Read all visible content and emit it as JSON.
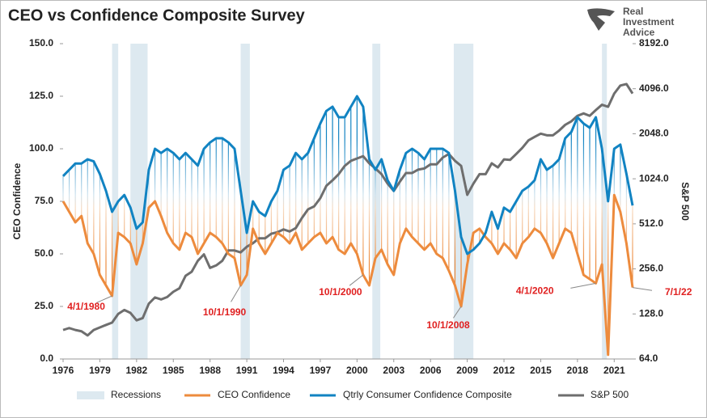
{
  "chart_data": {
    "type": "line",
    "title": "CEO vs Confidence Composite Survey",
    "logo": [
      "Real",
      "Investment",
      "Advice"
    ],
    "ylabel": "CEO Confidence",
    "y2label": "S&P 500",
    "x": [
      1976,
      1976.5,
      1977,
      1977.5,
      1978,
      1978.5,
      1979,
      1979.5,
      1980,
      1980.5,
      1981,
      1981.5,
      1982,
      1982.5,
      1983,
      1983.5,
      1984,
      1984.5,
      1985,
      1985.5,
      1986,
      1986.5,
      1987,
      1987.5,
      1988,
      1988.5,
      1989,
      1989.5,
      1990,
      1990.5,
      1991,
      1991.5,
      1992,
      1992.5,
      1993,
      1993.5,
      1994,
      1994.5,
      1995,
      1995.5,
      1996,
      1996.5,
      1997,
      1997.5,
      1998,
      1998.5,
      1999,
      1999.5,
      2000,
      2000.5,
      2001,
      2001.5,
      2002,
      2002.5,
      2003,
      2003.5,
      2004,
      2004.5,
      2005,
      2005.5,
      2006,
      2006.5,
      2007,
      2007.5,
      2008,
      2008.5,
      2009,
      2009.5,
      2010,
      2010.5,
      2011,
      2011.5,
      2012,
      2012.5,
      2013,
      2013.5,
      2014,
      2014.5,
      2015,
      2015.5,
      2016,
      2016.5,
      2017,
      2017.5,
      2018,
      2018.5,
      2019,
      2019.5,
      2020,
      2020.5,
      2021,
      2021.5,
      2022,
      2022.5
    ],
    "series": [
      {
        "name": "CEO Confidence",
        "color": "#ed8b3d",
        "values": [
          75,
          70,
          65,
          68,
          55,
          50,
          40,
          35,
          30,
          60,
          58,
          55,
          45,
          55,
          72,
          75,
          68,
          60,
          55,
          52,
          60,
          58,
          50,
          55,
          60,
          58,
          55,
          50,
          48,
          35,
          40,
          62,
          55,
          50,
          55,
          60,
          58,
          55,
          60,
          52,
          55,
          58,
          60,
          55,
          58,
          52,
          50,
          55,
          50,
          40,
          35,
          48,
          52,
          45,
          40,
          55,
          62,
          58,
          55,
          52,
          55,
          50,
          48,
          42,
          35,
          25,
          45,
          60,
          62,
          58,
          55,
          50,
          55,
          52,
          48,
          55,
          58,
          62,
          60,
          55,
          48,
          55,
          62,
          60,
          50,
          40,
          38,
          36,
          45,
          2,
          78,
          70,
          55,
          34
        ]
      },
      {
        "name": "Qtrly Consumer Confidence Composite",
        "color": "#1183c2",
        "values": [
          87,
          90,
          93,
          93,
          95,
          94,
          88,
          80,
          70,
          75,
          78,
          72,
          62,
          65,
          90,
          100,
          98,
          100,
          98,
          95,
          98,
          95,
          92,
          100,
          103,
          105,
          105,
          103,
          100,
          80,
          60,
          75,
          70,
          68,
          75,
          80,
          90,
          92,
          98,
          95,
          98,
          105,
          112,
          118,
          120,
          115,
          115,
          120,
          125,
          120,
          95,
          90,
          95,
          85,
          80,
          90,
          98,
          100,
          98,
          95,
          100,
          100,
          100,
          98,
          80,
          58,
          50,
          52,
          55,
          60,
          70,
          62,
          72,
          70,
          75,
          80,
          82,
          85,
          95,
          90,
          92,
          95,
          105,
          108,
          115,
          112,
          110,
          115,
          100,
          75,
          100,
          102,
          88,
          73
        ]
      },
      {
        "name": "S&P 500",
        "color": "#6e6e6e",
        "axis": "y2",
        "values": [
          100,
          103,
          100,
          98,
          92,
          100,
          104,
          108,
          112,
          128,
          136,
          130,
          116,
          120,
          150,
          165,
          160,
          166,
          180,
          190,
          230,
          245,
          290,
          320,
          260,
          270,
          290,
          340,
          340,
          330,
          360,
          380,
          410,
          410,
          440,
          450,
          470,
          455,
          480,
          560,
          640,
          670,
          760,
          920,
          1000,
          1100,
          1250,
          1350,
          1400,
          1450,
          1300,
          1200,
          1100,
          950,
          850,
          980,
          1120,
          1120,
          1180,
          1200,
          1280,
          1280,
          1420,
          1500,
          1350,
          1250,
          800,
          950,
          1100,
          1100,
          1300,
          1220,
          1380,
          1370,
          1500,
          1650,
          1850,
          1950,
          2050,
          2000,
          2000,
          2150,
          2350,
          2480,
          2700,
          2800,
          2700,
          2950,
          3200,
          3100,
          3800,
          4300,
          4400,
          3800
        ]
      }
    ],
    "recessions": {
      "name": "Recessions",
      "color": "#dde9f0",
      "periods": [
        [
          1980,
          1980.5
        ],
        [
          1981.5,
          1982.9
        ],
        [
          1990.5,
          1991.25
        ],
        [
          2001.25,
          2001.9
        ],
        [
          2007.9,
          2009.5
        ],
        [
          2020,
          2020.4
        ]
      ]
    },
    "annotations": [
      {
        "text": "4/1/1980",
        "x": 1980
      },
      {
        "text": "10/1/1990",
        "x": 1990.5
      },
      {
        "text": "10/1/2000",
        "x": 2000.5
      },
      {
        "text": "10/1/2008",
        "x": 2008.5
      },
      {
        "text": "4/1/2020",
        "x": 2019.5
      },
      {
        "text": "7/1/22",
        "x": 2022.5
      }
    ],
    "annotation_color": "#e02020",
    "xlim": [
      1976,
      2022.5
    ],
    "xticks": [
      1976,
      1979,
      1982,
      1985,
      1988,
      1991,
      1994,
      1997,
      2000,
      2003,
      2006,
      2009,
      2012,
      2015,
      2018,
      2021
    ],
    "ylim": [
      0,
      150
    ],
    "yticks": [
      {
        "value": 0,
        "label": "0.0"
      },
      {
        "value": 25,
        "label": "25.0"
      },
      {
        "value": 50,
        "label": "50.0"
      },
      {
        "value": 75,
        "label": "75.0"
      },
      {
        "value": 100,
        "label": "100.0"
      },
      {
        "value": 125,
        "label": "125.0"
      },
      {
        "value": 150,
        "label": "150.0"
      }
    ],
    "y2lim": [
      64,
      8192
    ],
    "y2log": true,
    "y2ticks": [
      {
        "value": 64,
        "label": "64.0"
      },
      {
        "value": 128,
        "label": "128.0"
      },
      {
        "value": 256,
        "label": "256.0"
      },
      {
        "value": 512,
        "label": "512.0"
      },
      {
        "value": 1024,
        "label": "1024.0"
      },
      {
        "value": 2048,
        "label": "2048.0"
      },
      {
        "value": 4096,
        "label": "4096.0"
      },
      {
        "value": 8192,
        "label": "8192.0"
      }
    ],
    "grid": false
  }
}
